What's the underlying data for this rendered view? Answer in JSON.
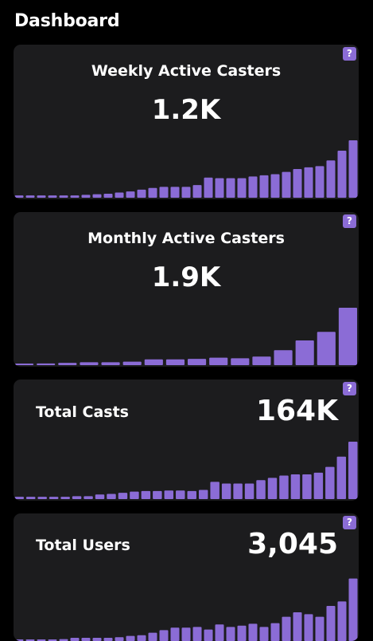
{
  "header": {
    "title": "Dashboard"
  },
  "colors": {
    "accent": "#8b6cd6",
    "card_bg": "#1c1c1e",
    "page_bg": "#000000"
  },
  "help_icon_label": "?",
  "cards": [
    {
      "id": "weekly",
      "title": "Weekly Active Casters",
      "value": "1.2K",
      "chart_data": {
        "type": "bar",
        "values": [
          0.04,
          0.04,
          0.04,
          0.04,
          0.04,
          0.04,
          0.05,
          0.06,
          0.07,
          0.09,
          0.11,
          0.14,
          0.17,
          0.19,
          0.19,
          0.19,
          0.22,
          0.35,
          0.34,
          0.34,
          0.34,
          0.37,
          0.39,
          0.41,
          0.45,
          0.5,
          0.53,
          0.55,
          0.65,
          0.82,
          1.0
        ]
      }
    },
    {
      "id": "monthly",
      "title": "Monthly Active Casters",
      "value": "1.9K",
      "chart_data": {
        "type": "bar",
        "values": [
          0.02,
          0.03,
          0.04,
          0.05,
          0.05,
          0.06,
          0.1,
          0.1,
          0.11,
          0.13,
          0.12,
          0.15,
          0.26,
          0.43,
          0.58,
          1.0
        ]
      }
    },
    {
      "id": "casts",
      "title": "Total Casts",
      "value": "164K",
      "chart_data": {
        "type": "bar",
        "values": [
          0.04,
          0.04,
          0.04,
          0.04,
          0.04,
          0.05,
          0.05,
          0.08,
          0.09,
          0.11,
          0.13,
          0.14,
          0.14,
          0.15,
          0.15,
          0.14,
          0.16,
          0.3,
          0.27,
          0.27,
          0.27,
          0.33,
          0.37,
          0.41,
          0.43,
          0.43,
          0.46,
          0.56,
          0.74,
          1.0
        ]
      }
    },
    {
      "id": "users",
      "title": "Total Users",
      "value": "3,045",
      "chart_data": {
        "type": "bar",
        "values": [
          0.0,
          0.0,
          0.0,
          0.02,
          0.03,
          0.05,
          0.05,
          0.05,
          0.05,
          0.06,
          0.08,
          0.09,
          0.13,
          0.17,
          0.21,
          0.21,
          0.22,
          0.18,
          0.26,
          0.22,
          0.24,
          0.27,
          0.22,
          0.28,
          0.38,
          0.45,
          0.42,
          0.38,
          0.55,
          0.62,
          0.98
        ]
      }
    }
  ]
}
